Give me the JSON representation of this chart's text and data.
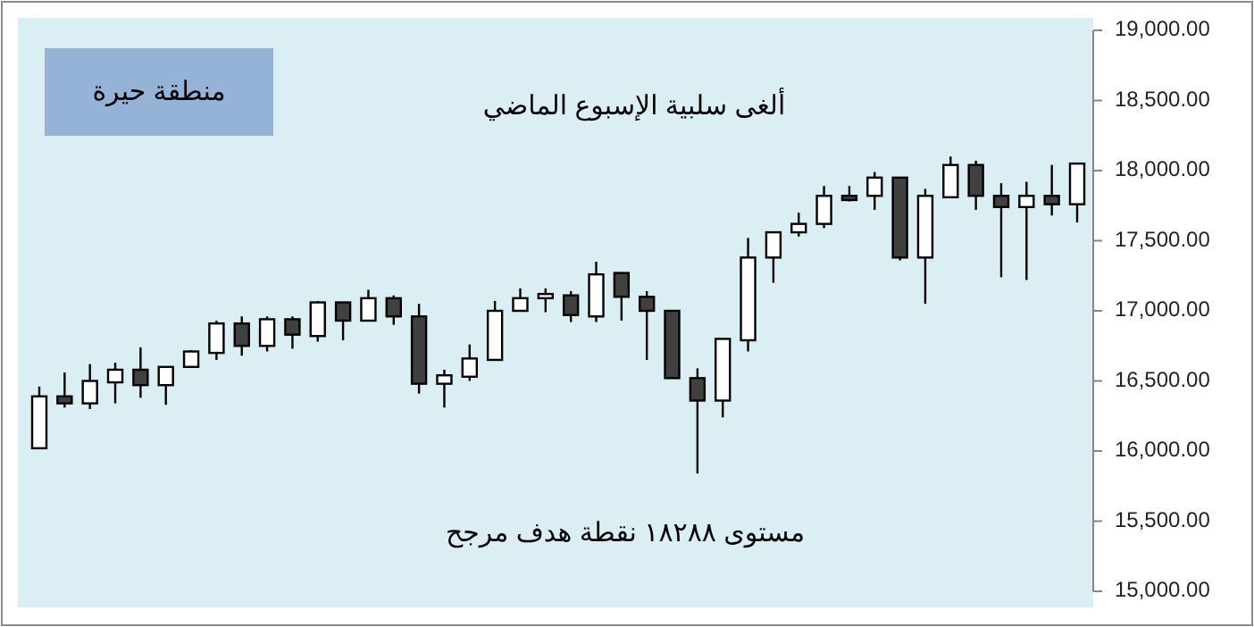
{
  "chart_data": {
    "type": "candlestick",
    "categories": [
      null,
      null,
      null,
      null,
      null,
      null,
      null,
      null,
      null,
      null,
      null,
      null,
      null,
      null,
      null,
      null,
      null,
      null,
      null,
      null,
      null,
      null,
      null,
      null,
      null,
      null,
      null,
      null,
      null,
      null,
      null,
      null,
      null,
      null,
      null,
      null,
      null,
      null,
      null,
      null,
      null,
      null
    ],
    "ohlc": [
      [
        16020,
        16460,
        16020,
        16390
      ],
      [
        16390,
        16560,
        16310,
        16340
      ],
      [
        16340,
        16620,
        16300,
        16500
      ],
      [
        16490,
        16630,
        16340,
        16580
      ],
      [
        16580,
        16740,
        16380,
        16470
      ],
      [
        16470,
        16600,
        16330,
        16600
      ],
      [
        16600,
        16720,
        16600,
        16710
      ],
      [
        16700,
        16930,
        16650,
        16910
      ],
      [
        16910,
        16960,
        16680,
        16750
      ],
      [
        16750,
        16960,
        16710,
        16940
      ],
      [
        16940,
        16960,
        16730,
        16830
      ],
      [
        16820,
        17070,
        16780,
        17060
      ],
      [
        17060,
        17060,
        16790,
        16930
      ],
      [
        16930,
        17150,
        16930,
        17090
      ],
      [
        17090,
        17110,
        16900,
        16960
      ],
      [
        16960,
        17050,
        16410,
        16480
      ],
      [
        16480,
        16580,
        16310,
        16540
      ],
      [
        16530,
        16760,
        16500,
        16660
      ],
      [
        16650,
        17070,
        16650,
        17000
      ],
      [
        17000,
        17160,
        17000,
        17090
      ],
      [
        17090,
        17160,
        16990,
        17120
      ],
      [
        17110,
        17140,
        16920,
        16970
      ],
      [
        16960,
        17350,
        16920,
        17260
      ],
      [
        17270,
        17270,
        16930,
        17100
      ],
      [
        17100,
        17140,
        16650,
        17000
      ],
      [
        17000,
        17000,
        16520,
        16520
      ],
      [
        16520,
        16590,
        15840,
        16360
      ],
      [
        16360,
        16800,
        16240,
        16800
      ],
      [
        16790,
        17520,
        16710,
        17380
      ],
      [
        17380,
        17560,
        17200,
        17560
      ],
      [
        17560,
        17700,
        17530,
        17620
      ],
      [
        17620,
        17890,
        17590,
        17820
      ],
      [
        17820,
        17890,
        17780,
        17790
      ],
      [
        17820,
        17990,
        17720,
        17950
      ],
      [
        17950,
        17950,
        17360,
        17380
      ],
      [
        17380,
        17870,
        17050,
        17820
      ],
      [
        17810,
        18100,
        17810,
        18040
      ],
      [
        18040,
        18070,
        17720,
        17820
      ],
      [
        17820,
        17910,
        17240,
        17740
      ],
      [
        17740,
        17920,
        17220,
        17820
      ],
      [
        17820,
        18040,
        17680,
        17760
      ],
      [
        17760,
        18050,
        17630,
        18050
      ]
    ],
    "ylim": [
      15000,
      19000
    ],
    "yticks": [
      {
        "value": 15000,
        "label": "15,000.00"
      },
      {
        "value": 15500,
        "label": "15,500.00"
      },
      {
        "value": 16000,
        "label": "16,000.00"
      },
      {
        "value": 16500,
        "label": "16,500.00"
      },
      {
        "value": 17000,
        "label": "17,000.00"
      },
      {
        "value": 17500,
        "label": "17,500.00"
      },
      {
        "value": 18000,
        "label": "18,000.00"
      },
      {
        "value": 18500,
        "label": "18,500.00"
      },
      {
        "value": 19000,
        "label": "19,000.00"
      }
    ],
    "tick_labels": "y",
    "grid": false,
    "annotations": [
      "منطقة حيرة",
      "ألغى سلبية الإسبوع الماضي",
      "مستوى ١٨٢٨٨ نقطة هدف مرجح"
    ]
  }
}
